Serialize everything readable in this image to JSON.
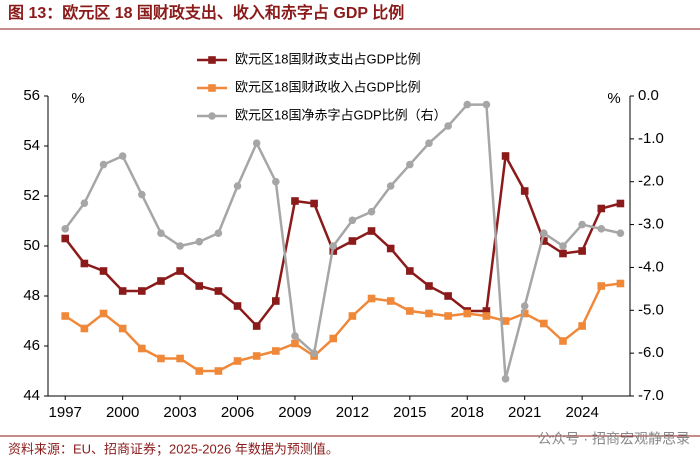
{
  "chart_data": {
    "type": "line",
    "title": "图 13：欧元区 18 国财政支出、收入和赤字占 GDP 比例",
    "source": "资料来源：EU、招商证券；2025-2026 年数据为预测值。",
    "watermark": "公众号 · 招商宏观静思录",
    "ylabel": "%",
    "y2label": "%",
    "x": [
      1997,
      1998,
      1999,
      2000,
      2001,
      2002,
      2003,
      2004,
      2005,
      2006,
      2007,
      2008,
      2009,
      2010,
      2011,
      2012,
      2013,
      2014,
      2015,
      2016,
      2017,
      2018,
      2019,
      2020,
      2021,
      2022,
      2023,
      2024,
      2025,
      2026
    ],
    "xlim": [
      1996.1,
      2026.5
    ],
    "xticks": [
      1997,
      2000,
      2003,
      2006,
      2009,
      2012,
      2015,
      2018,
      2021,
      2024
    ],
    "ylim": [
      44,
      56
    ],
    "yticks": [
      44,
      46,
      48,
      50,
      52,
      54,
      56
    ],
    "y2lim": [
      -7,
      0
    ],
    "y2ticks": [
      {
        "value": 0,
        "label": "0.0"
      },
      {
        "value": -1,
        "label": "-1.0"
      },
      {
        "value": -2,
        "label": "-2.0"
      },
      {
        "value": -3,
        "label": "-3.0"
      },
      {
        "value": -4,
        "label": "-4.0"
      },
      {
        "value": -5,
        "label": "-5.0"
      },
      {
        "value": -6,
        "label": "-6.0"
      },
      {
        "value": -7,
        "label": "-7.0"
      }
    ],
    "series": [
      {
        "name": "欧元区18国财政支出占GDP比例",
        "color": "#8b1a1a",
        "marker": "square",
        "values": [
          50.3,
          49.3,
          49.0,
          48.2,
          48.2,
          48.6,
          49.0,
          48.4,
          48.2,
          47.6,
          46.8,
          47.8,
          51.8,
          51.7,
          49.8,
          50.2,
          50.6,
          49.9,
          49.0,
          48.4,
          48.0,
          47.4,
          47.4,
          53.6,
          52.2,
          50.2,
          49.7,
          49.8,
          51.5,
          51.7
        ]
      },
      {
        "name": "欧元区18国财政收入占GDP比例",
        "color": "#f0883a",
        "marker": "square",
        "values": [
          47.2,
          46.7,
          47.3,
          46.7,
          45.9,
          45.5,
          45.5,
          45.0,
          45.0,
          45.4,
          45.6,
          45.8,
          46.1,
          45.6,
          46.3,
          47.2,
          47.9,
          47.8,
          47.4,
          47.3,
          47.2,
          47.3,
          47.2,
          47.0,
          47.3,
          46.9,
          46.2,
          46.8,
          48.4,
          48.5
        ]
      },
      {
        "name": "欧元区18国净赤字占GDP比例（右）",
        "color": "#a6a6a6",
        "marker": "circle",
        "axis": "y2",
        "values": [
          -3.1,
          -2.5,
          -1.6,
          -1.4,
          -2.3,
          -3.2,
          -3.5,
          -3.4,
          -3.2,
          -2.1,
          -1.1,
          -2.0,
          -5.6,
          -6.0,
          -3.5,
          -2.9,
          -2.7,
          -2.1,
          -1.6,
          -1.1,
          -0.7,
          -0.2,
          -0.2,
          -6.6,
          -4.9,
          -3.2,
          -3.5,
          -3.0,
          -3.1,
          -3.2
        ]
      }
    ]
  }
}
